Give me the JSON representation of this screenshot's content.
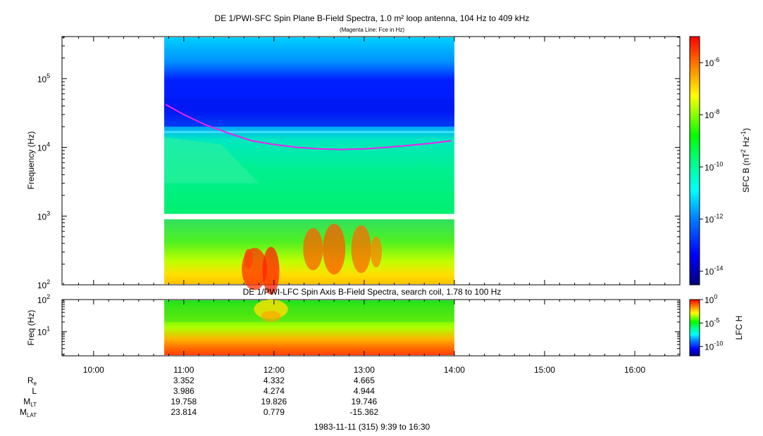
{
  "title": "DE 1/PWI-SFC  Spin Plane B-Field Spectra, 1.0 m² loop antenna, 104 Hz to 409 kHz",
  "subtitle": "(Magenta Line: Fce in Hz)",
  "chart_data": [
    {
      "type": "heatmap",
      "title": "DE 1/PWI-SFC  Spin Plane B-Field Spectra, 1.0 m² loop antenna, 104 Hz to 409 kHz",
      "subtitle": "(Magenta Line: Fce in Hz)",
      "ylabel": "Frequency (Hz)",
      "yscale": "log",
      "ylim": [
        100,
        409000
      ],
      "ytick_labels": [
        {
          "base": "10",
          "exp": "2",
          "value": 100
        },
        {
          "base": "10",
          "exp": "3",
          "value": 1000
        },
        {
          "base": "10",
          "exp": "4",
          "value": 10000
        },
        {
          "base": "10",
          "exp": "5",
          "value": 100000
        }
      ],
      "data_time_range": [
        "10:47",
        "14:00"
      ],
      "colorbar": {
        "label": "SFC B (nT",
        "label_sup1": "2",
        "label_mid": " Hz",
        "label_sup2": "-1",
        "label_end": ")",
        "scale": "log",
        "range": [
          3e-15,
          1e-05
        ],
        "ticks": [
          {
            "base": "10",
            "exp": "-6"
          },
          {
            "base": "10",
            "exp": "-8"
          },
          {
            "base": "10",
            "exp": "-10"
          },
          {
            "base": "10",
            "exp": "-12"
          },
          {
            "base": "10",
            "exp": "-14"
          }
        ]
      },
      "overlay_line": {
        "color": "#ee22ee",
        "points": [
          [
            "10:48",
            42000
          ],
          [
            "11:00",
            30000
          ],
          [
            "11:15",
            21000
          ],
          [
            "11:30",
            16000
          ],
          [
            "11:45",
            12500
          ],
          [
            "12:00",
            11000
          ],
          [
            "12:15",
            10000
          ],
          [
            "12:30",
            9500
          ],
          [
            "12:45",
            9300
          ],
          [
            "13:00",
            9500
          ],
          [
            "13:15",
            10000
          ],
          [
            "13:30",
            10700
          ],
          [
            "13:45",
            11500
          ],
          [
            "13:58",
            12500
          ]
        ]
      }
    },
    {
      "type": "heatmap",
      "title": "DE 1/PWI-LFC  Spin Axis B-Field Spectra, search coil, 1.78 to 100 Hz",
      "ylabel": "Freq (Hz)",
      "yscale": "log",
      "ylim": [
        1.78,
        100
      ],
      "ytick_labels": [
        {
          "base": "10",
          "exp": "1",
          "value": 10
        },
        {
          "base": "10",
          "exp": "2",
          "value": 100
        }
      ],
      "data_time_range": [
        "10:47",
        "14:00"
      ],
      "colorbar": {
        "label": "LFC H",
        "scale": "log",
        "range": [
          1e-12,
          1
        ],
        "ticks": [
          {
            "base": "10",
            "exp": "0"
          },
          {
            "base": "10",
            "exp": "-5"
          },
          {
            "base": "10",
            "exp": "-10"
          }
        ]
      }
    }
  ],
  "time_axis": {
    "ticks": [
      "10:00",
      "11:00",
      "12:00",
      "13:00",
      "14:00",
      "15:00",
      "16:00"
    ],
    "range": [
      "9:39",
      "16:30"
    ]
  },
  "ephemeris": {
    "rows": [
      {
        "label": "R",
        "sub": "e",
        "values": [
          "3.352",
          "4.332",
          "4.665"
        ]
      },
      {
        "label": "L",
        "sub": "",
        "values": [
          "3.986",
          "4.274",
          "4.944"
        ]
      },
      {
        "label": "M",
        "sub": "LT",
        "values": [
          "19.758",
          "19.826",
          "19.746"
        ]
      },
      {
        "label": "M",
        "sub": "LAT",
        "values": [
          "23.814",
          "0.779",
          "-15.362"
        ]
      }
    ]
  },
  "footer": "1983-11-11 (315) 9:39 to 16:30",
  "colors": {
    "spectrogram_scale": [
      "#00008b",
      "#0000ff",
      "#0080ff",
      "#00ffff",
      "#00ff80",
      "#00ff00",
      "#80ff00",
      "#ffff00",
      "#ff8000",
      "#ff0000"
    ],
    "overlay": "#ee22ee"
  }
}
